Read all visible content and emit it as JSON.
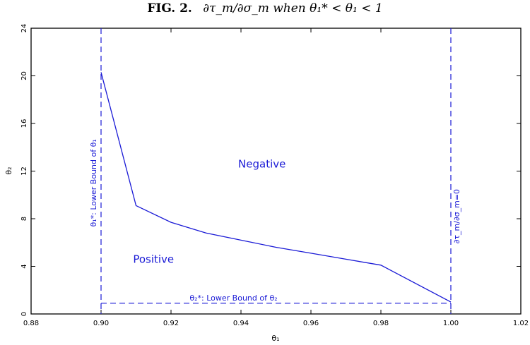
{
  "title": {
    "fig": "FIG. 2.",
    "math": "∂τ_m/∂σ_m when θ₁* < θ₁ < 1"
  },
  "colors": {
    "series": "#1a1ad6",
    "axis": "#000000"
  },
  "chart_data": {
    "type": "line",
    "xlabel": "θ₁",
    "ylabel": "θ₂",
    "xlim": [
      0.88,
      1.02
    ],
    "ylim": [
      0,
      24
    ],
    "xticks": [
      0.88,
      0.9,
      0.92,
      0.94,
      0.96,
      0.98,
      1.0,
      1.02
    ],
    "yticks": [
      0,
      4,
      8,
      12,
      16,
      20,
      24
    ],
    "xtick_labels": [
      "0.88",
      "0.90",
      "0.92",
      "0.94",
      "0.96",
      "0.98",
      "1.00",
      "1.02"
    ],
    "ytick_labels": [
      "0",
      "4",
      "8",
      "12",
      "16",
      "20",
      "24"
    ],
    "grid": false,
    "series": [
      {
        "x": [
          0.9,
          0.91,
          0.92,
          0.93,
          0.94,
          0.95,
          0.96,
          0.97,
          0.98,
          1.0
        ],
        "y": [
          20.3,
          9.1,
          7.7,
          6.8,
          6.2,
          5.6,
          5.1,
          4.6,
          4.1,
          1.0
        ]
      }
    ],
    "reference_lines": [
      {
        "orientation": "vertical",
        "x": 0.9,
        "style": "dashed",
        "label": "θ₁*: Lower Bound of θ₁"
      },
      {
        "orientation": "vertical",
        "x": 1.0,
        "style": "dashed",
        "label": "∂τ_m/∂σ_m=0"
      },
      {
        "orientation": "horizontal",
        "y": 0.9,
        "x_range": [
          0.9,
          1.0
        ],
        "style": "dashed",
        "label": "θ₂*: Lower Bound of θ₂"
      }
    ],
    "annotations": [
      {
        "text": "Negative",
        "x": 0.946,
        "y": 12.3
      },
      {
        "text": "Positive",
        "x": 0.915,
        "y": 4.3
      }
    ]
  }
}
